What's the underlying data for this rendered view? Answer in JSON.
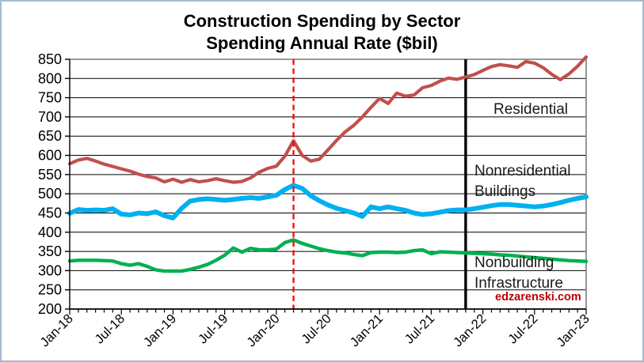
{
  "title": {
    "line1": "Construction Spending by Sector",
    "line2": "Spending Annual Rate ($bil)"
  },
  "watermark": "edzarenski.com",
  "annotations": {
    "residential": "Residential",
    "nonresidential_line1": "Nonresidential",
    "nonresidential_line2": "Buildings",
    "nonbuilding_line1": "Nonbuilding",
    "nonbuilding_line2": "Infrastructure"
  },
  "colors": {
    "residential": "#C0504D",
    "nonresidential_buildings": "#00B0F0",
    "nonbuilding_infrastructure": "#00B050",
    "covid_marker_dashed": "#FF0000",
    "solid_marker": "#000000",
    "watermark": "#C00000",
    "gridline": "#000000",
    "axis": "#000000",
    "plot_border": "#8C8C8C",
    "figure_border": "#A6BAD3"
  },
  "chart_data": {
    "type": "line",
    "title": "Construction Spending by Sector",
    "subtitle": "Spending Annual Rate ($bil)",
    "x_unit": "month",
    "x_start": "Jan-18",
    "x_end": "Jan-23",
    "months_total": 61,
    "x_tick_labels": [
      "Jan-18",
      "Jul-18",
      "Jan-19",
      "Jul-19",
      "Jan-20",
      "Jul-20",
      "Jan-21",
      "Jul-21",
      "Jan-22",
      "Jul-22",
      "Jan-23"
    ],
    "x_tick_every_months": 6,
    "y_ticks": [
      200,
      250,
      300,
      350,
      400,
      450,
      500,
      550,
      600,
      650,
      700,
      750,
      800,
      850
    ],
    "ylim": [
      200,
      850
    ],
    "grid": "horizontal",
    "legend": "inline-text-labels",
    "series": [
      {
        "name": "Residential",
        "color": "#C0504D",
        "stroke_width": 4.2,
        "values": [
          578,
          588,
          592,
          585,
          577,
          571,
          565,
          559,
          551,
          545,
          541,
          531,
          538,
          530,
          537,
          531,
          534,
          539,
          534,
          530,
          532,
          541,
          556,
          566,
          572,
          598,
          638,
          600,
          585,
          590,
          614,
          639,
          661,
          678,
          700,
          725,
          748,
          735,
          762,
          754,
          757,
          776,
          782,
          793,
          801,
          798,
          804,
          810,
          821,
          831,
          836,
          833,
          829,
          844,
          840,
          828,
          811,
          797,
          812,
          832,
          856
        ]
      },
      {
        "name": "Nonresidential Buildings",
        "color": "#00B0F0",
        "stroke_width": 6,
        "values": [
          449,
          459,
          457,
          458,
          457,
          461,
          447,
          445,
          450,
          448,
          453,
          443,
          437,
          462,
          481,
          485,
          487,
          485,
          483,
          485,
          488,
          490,
          488,
          492,
          496,
          511,
          522,
          514,
          495,
          482,
          471,
          462,
          456,
          450,
          441,
          466,
          461,
          466,
          461,
          457,
          450,
          446,
          448,
          452,
          456,
          458,
          458,
          461,
          465,
          469,
          472,
          472,
          470,
          468,
          466,
          468,
          472,
          477,
          483,
          488,
          492
        ]
      },
      {
        "name": "Nonbuilding Infrastructure",
        "color": "#00B050",
        "stroke_width": 4.4,
        "values": [
          325,
          327,
          327,
          327,
          326,
          325,
          318,
          314,
          318,
          311,
          302,
          299,
          299,
          299,
          303,
          309,
          316,
          327,
          340,
          359,
          348,
          358,
          354,
          354,
          356,
          373,
          380,
          371,
          364,
          357,
          352,
          348,
          346,
          342,
          339,
          347,
          348,
          348,
          347,
          348,
          352,
          354,
          344,
          349,
          348,
          347,
          346,
          345,
          344,
          343,
          341,
          340,
          338,
          336,
          334,
          332,
          330,
          328,
          326,
          325,
          324
        ]
      }
    ],
    "vertical_markers": [
      {
        "at": "Mar-20",
        "month_index": 26,
        "style": "dashed",
        "color": "#FF0000"
      },
      {
        "at": "Nov-21",
        "month_index": 46,
        "style": "solid",
        "color": "#000000"
      }
    ]
  }
}
